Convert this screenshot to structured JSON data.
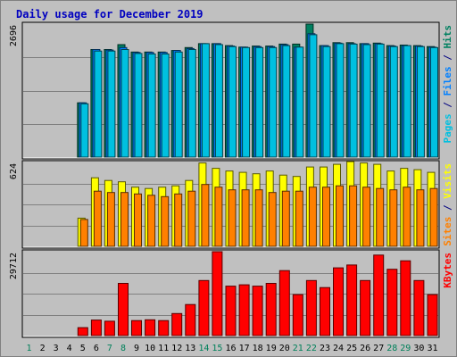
{
  "chart_data": {
    "type": "bar",
    "title": "Daily usage for December 2019",
    "categories": [
      "1",
      "2",
      "3",
      "4",
      "5",
      "6",
      "7",
      "8",
      "9",
      "10",
      "11",
      "12",
      "13",
      "14",
      "15",
      "16",
      "17",
      "18",
      "19",
      "20",
      "21",
      "22",
      "23",
      "24",
      "25",
      "26",
      "27",
      "28",
      "29",
      "30",
      "31"
    ],
    "weekend_days": [
      "1",
      "7",
      "8",
      "14",
      "15",
      "21",
      "22",
      "28",
      "29"
    ],
    "panels": [
      {
        "id": "hits",
        "ymax": 2696,
        "ymax_label": "2696",
        "label_parts": [
          {
            "text": "Pages",
            "color": "#00c0e0"
          },
          {
            "text": " / ",
            "color": "#000080"
          },
          {
            "text": "Files",
            "color": "#0080ff"
          },
          {
            "text": " / ",
            "color": "#000080"
          },
          {
            "text": "Hits",
            "color": "#008060"
          }
        ],
        "series": [
          {
            "name": "Hits",
            "color": "#008060",
            "values": [
              0,
              0,
              0,
              0,
              1100,
              2180,
              2180,
              2280,
              2130,
              2130,
              2130,
              2160,
              2220,
              2300,
              2300,
              2260,
              2230,
              2250,
              2250,
              2290,
              2290,
              2696,
              2260,
              2320,
              2320,
              2300,
              2310,
              2260,
              2270,
              2260,
              2240
            ]
          },
          {
            "name": "Files",
            "color": "#0080ff",
            "values": [
              0,
              0,
              0,
              0,
              1100,
              2180,
              2170,
              2220,
              2120,
              2120,
              2120,
              2160,
              2200,
              2300,
              2300,
              2250,
              2230,
              2240,
              2240,
              2280,
              2230,
              2500,
              2260,
              2310,
              2300,
              2300,
              2300,
              2250,
              2260,
              2250,
              2230
            ]
          },
          {
            "name": "Pages",
            "color": "#00c0e0",
            "values": [
              0,
              0,
              0,
              0,
              1080,
              2150,
              2150,
              2180,
              2100,
              2090,
              2090,
              2130,
              2180,
              2300,
              2280,
              2240,
              2220,
              2220,
              2220,
              2260,
              2230,
              2480,
              2240,
              2300,
              2290,
              2280,
              2290,
              2240,
              2260,
              2240,
              2220
            ]
          }
        ]
      },
      {
        "id": "visits",
        "ymax": 624,
        "ymax_label": "624",
        "label_parts": [
          {
            "text": "Sites",
            "color": "#ff8000"
          },
          {
            "text": " / ",
            "color": "#000080"
          },
          {
            "text": "Visits",
            "color": "#ffff00"
          }
        ],
        "series": [
          {
            "name": "Visits",
            "color": "#ffff00",
            "values": [
              0,
              0,
              0,
              0,
              210,
              510,
              490,
              480,
              440,
              430,
              440,
              450,
              490,
              620,
              580,
              560,
              550,
              540,
              560,
              530,
              520,
              590,
              590,
              610,
              630,
              620,
              610,
              560,
              580,
              570,
              550
            ]
          },
          {
            "name": "Sites",
            "color": "#ff8000",
            "values": [
              0,
              0,
              0,
              0,
              200,
              410,
              400,
              400,
              390,
              380,
              370,
              390,
              410,
              460,
              440,
              420,
              420,
              420,
              400,
              410,
              410,
              440,
              440,
              450,
              450,
              440,
              430,
              420,
              440,
              420,
              430
            ]
          }
        ]
      },
      {
        "id": "kbytes",
        "ymax": 29712,
        "ymax_label": "29712",
        "label_parts": [
          {
            "text": "KBytes",
            "color": "#ff0000"
          }
        ],
        "series": [
          {
            "name": "KBytes",
            "color": "#ff0000",
            "values": [
              0,
              0,
              0,
              0,
              2800,
              5500,
              5100,
              18500,
              5300,
              5600,
              5300,
              7800,
              11000,
              19500,
              29712,
              17500,
              18000,
              17500,
              18500,
              23000,
              14500,
              19500,
              17000,
              24000,
              25000,
              19500,
              28500,
              23500,
              26500,
              19500,
              14500
            ]
          }
        ]
      }
    ]
  }
}
